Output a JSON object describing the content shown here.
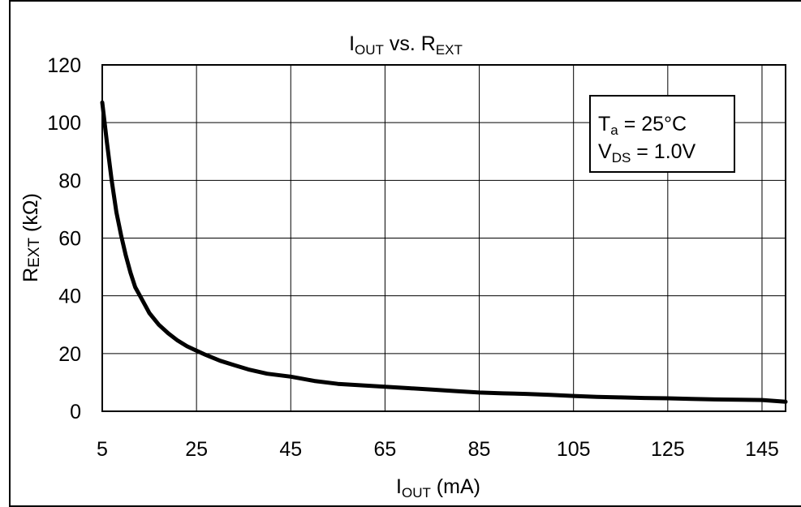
{
  "chart_data": {
    "type": "line",
    "title": {
      "main": "I",
      "sub1": "OUT",
      "mid": " vs. R",
      "sub2": "EXT"
    },
    "xlabel": {
      "main": "I",
      "sub": "OUT",
      "rest": " (mA)"
    },
    "ylabel": {
      "main": "R",
      "sub": "EXT",
      "rest": " (kΩ)"
    },
    "xlim": [
      5,
      150
    ],
    "ylim": [
      0,
      120
    ],
    "xticks": [
      5,
      25,
      45,
      65,
      85,
      105,
      125,
      145
    ],
    "xtick_labels": [
      "5",
      "25",
      "45",
      "65",
      "85",
      "105",
      "125",
      "145"
    ],
    "yticks": [
      0,
      20,
      40,
      60,
      80,
      100,
      120
    ],
    "ytick_labels": [
      "0",
      "20",
      "40",
      "60",
      "80",
      "100",
      "120"
    ],
    "grid": true,
    "annotation": {
      "line1": {
        "main": "T",
        "sub": "a",
        "rest": " = 25°C"
      },
      "line2": {
        "main": "V",
        "sub": "DS",
        "rest": " = 1.0V"
      },
      "placement": "top-right"
    },
    "series": [
      {
        "color": "#000000",
        "x": [
          5,
          6,
          7,
          8,
          9,
          10,
          11,
          12,
          13,
          14,
          15,
          17,
          19,
          21,
          23,
          25,
          27,
          30,
          33,
          36,
          40,
          45,
          50,
          55,
          60,
          65,
          70,
          75,
          80,
          85,
          90,
          95,
          100,
          105,
          110,
          115,
          120,
          125,
          130,
          135,
          140,
          145,
          150
        ],
        "y": [
          107,
          93,
          80,
          69,
          61,
          54,
          48,
          43,
          40,
          37,
          34,
          30,
          27,
          24.5,
          22.5,
          21,
          19.5,
          17.5,
          16,
          14.5,
          13,
          12,
          10.5,
          9.5,
          9,
          8.5,
          8,
          7.5,
          7,
          6.5,
          6.2,
          6,
          5.7,
          5.3,
          5,
          4.8,
          4.6,
          4.5,
          4.3,
          4.1,
          4,
          3.9,
          3.3
        ]
      }
    ]
  }
}
